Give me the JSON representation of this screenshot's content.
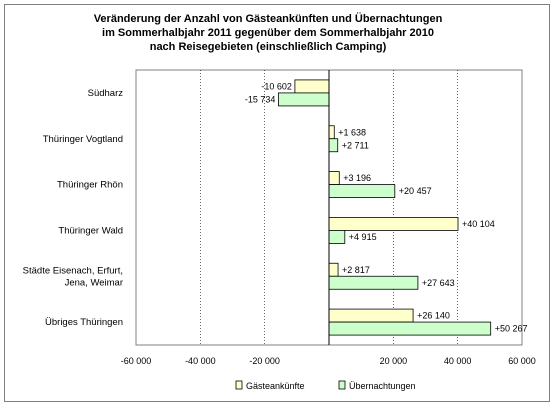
{
  "chart_data": {
    "type": "bar",
    "orientation": "horizontal",
    "title_lines": [
      "Veränderung der Anzahl von Gästeankünften und Übernachtungen",
      "im Sommerhalbjahr 2011 gegenüber dem Sommerhalbjahr 2010",
      "nach Reisegebieten (einschließlich Camping)"
    ],
    "categories": [
      [
        "Südharz"
      ],
      [
        "Thüringer Vogtland"
      ],
      [
        "Thüringer Rhön"
      ],
      [
        "Thüringer Wald"
      ],
      [
        "Städte Eisenach, Erfurt,",
        "Jena, Weimar"
      ],
      [
        "Übriges Thüringen"
      ]
    ],
    "series": [
      {
        "name": "Gästeankünfte",
        "color": "#ffffcc",
        "values": [
          -10602,
          1638,
          3196,
          40104,
          2817,
          26140
        ],
        "labels": [
          "-10 602",
          "+1 638",
          "+3 196",
          "+40 104",
          "+2 817",
          "+26 140"
        ]
      },
      {
        "name": "Übernachtungen",
        "color": "#ccffcc",
        "values": [
          -15734,
          2711,
          20457,
          4915,
          27643,
          50267
        ],
        "labels": [
          "-15 734",
          "+2 711",
          "+20 457",
          "+4 915",
          "+27 643",
          "+50 267"
        ]
      }
    ],
    "xlim": [
      -60000,
      60000
    ],
    "xticks": [
      -60000,
      -40000,
      -20000,
      20000,
      40000,
      60000
    ],
    "xtick_labels": [
      "-60 000",
      "-40 000",
      "-20 000",
      "20 000",
      "40 000",
      "60 000"
    ],
    "grid": "vertical-lines",
    "legend_position": "bottom"
  }
}
